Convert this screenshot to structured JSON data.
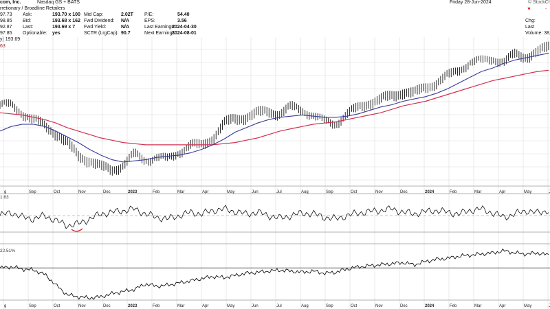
{
  "header": {
    "company": "com, Inc.",
    "exchange": "Nasdaq GS + BATS",
    "sector": "rretionary / Broadline Retailers",
    "date": "Friday  28-Jun-2024",
    "brand": "© StockCh",
    "left_values": [
      "97.73",
      "98.85",
      "92.87",
      "97.85"
    ],
    "fields": {
      "ask_label": "Ask:",
      "ask": "193.70 x 100",
      "bid_label": "Bid:",
      "bid": "193.68 x 162",
      "last_label": "Last:",
      "last": "193.69 x 7",
      "optionable_label": "Optionable:",
      "optionable": "yes",
      "midcap_label": "Mid Cap:",
      "midcap": "2.02T",
      "fwd_div_label": "Fwd Dividend:",
      "fwd_div": "N/A",
      "fwd_yield_label": "Fwd Yield:",
      "fwd_yield": "N/A",
      "sctr_label": "SCTR (LrgCap):",
      "sctr": "90.7",
      "pe_label": "P/E:",
      "pe": "54.40",
      "eps_label": "EPS:",
      "eps": "3.56",
      "last_earn_label": "Last Earnings:",
      "last_earn": "2024-04-30",
      "next_earn_label": "Next Earnings:",
      "next_earn": "2024-08-01"
    },
    "right_labels": {
      "chg": "Chg:",
      "last": "Last",
      "volume": "Volume: 38,8"
    },
    "line_5": "y) 193.69",
    "line_6": "63"
  },
  "panel_labels": {
    "indicator1": "1.63",
    "indicator2": "22.51%"
  },
  "colors": {
    "price": "#111111",
    "sma_fast": "#3a3a9a",
    "sma_slow": "#d03050",
    "grid": "#d9d9d9",
    "down_marker": "#d81b1b"
  },
  "chart_data": {
    "type": "line",
    "x_ticks": [
      "g",
      "Sep",
      "Oct",
      "Nov",
      "Dec",
      "2023",
      "Feb",
      "Mar",
      "Apr",
      "May",
      "Jun",
      "Jul",
      "Aug",
      "Sep",
      "Oct",
      "Nov",
      "Dec",
      "2024",
      "Feb",
      "Mar",
      "Apr",
      "May",
      "Jun"
    ],
    "series": [
      {
        "key": "price",
        "values": [
          142,
          141,
          134,
          128,
          122,
          116,
          107,
          96,
          92,
          86,
          84,
          88,
          98,
          93,
          96,
          94,
          100,
          106,
          105,
          112,
          124,
          128,
          130,
          133,
          135,
          133,
          139,
          137,
          132,
          127,
          125,
          133,
          138,
          143,
          145,
          148,
          152,
          150,
          156,
          160,
          166,
          172,
          178,
          180,
          182,
          178,
          185,
          183,
          186,
          191
        ]
      },
      {
        "key": "sma_fast",
        "values": [
          118,
          122,
          124,
          124,
          122,
          118,
          113,
          108,
          102,
          97,
          93,
          91,
          92,
          93,
          95,
          96,
          97,
          99,
          102,
          106,
          111,
          117,
          121,
          125,
          128,
          130,
          131,
          132,
          131,
          130,
          130,
          131,
          133,
          136,
          139,
          141,
          144,
          146,
          148,
          151,
          155,
          160,
          165,
          170,
          173,
          177,
          180,
          182,
          184,
          186
        ]
      },
      {
        "key": "sma_slow",
        "values": [
          134,
          133,
          132,
          130,
          128,
          125,
          121,
          118,
          115,
          112,
          110,
          108,
          107,
          106,
          106,
          106,
          106,
          106,
          106,
          106,
          107,
          108,
          110,
          112,
          115,
          118,
          120,
          122,
          124,
          125,
          126,
          128,
          130,
          132,
          134,
          137,
          140,
          142,
          144,
          147,
          150,
          153,
          156,
          159,
          162,
          164,
          166,
          168,
          170,
          171
        ]
      },
      {
        "key": "indicator1",
        "values": [
          50,
          60,
          45,
          40,
          50,
          35,
          20,
          25,
          40,
          55,
          60,
          65,
          70,
          55,
          45,
          40,
          50,
          60,
          55,
          65,
          70,
          62,
          55,
          60,
          50,
          42,
          50,
          58,
          55,
          45,
          40,
          50,
          58,
          62,
          66,
          70,
          60,
          56,
          62,
          66,
          60,
          55,
          66,
          70,
          58,
          45,
          55,
          65,
          58,
          66
        ]
      },
      {
        "key": "indicator2",
        "values": [
          0,
          1,
          -1,
          -2,
          -6,
          -16,
          -25,
          -27,
          -28,
          -27,
          -24,
          -22,
          -20,
          -15,
          -17,
          -16,
          -14,
          -12,
          -10,
          -8,
          -9,
          -7,
          -5,
          -4,
          -3,
          -2,
          -3,
          -4,
          -3,
          -5,
          -4,
          -1,
          1,
          2,
          3,
          4,
          5,
          3,
          6,
          8,
          9,
          11,
          12,
          13,
          14,
          16,
          14,
          13,
          14,
          12
        ]
      }
    ],
    "ylim_price": [
      70,
      200
    ],
    "ylim_indicator1": [
      0,
      100
    ],
    "ylim_indicator2": [
      -30,
      20
    ],
    "grid": true
  }
}
